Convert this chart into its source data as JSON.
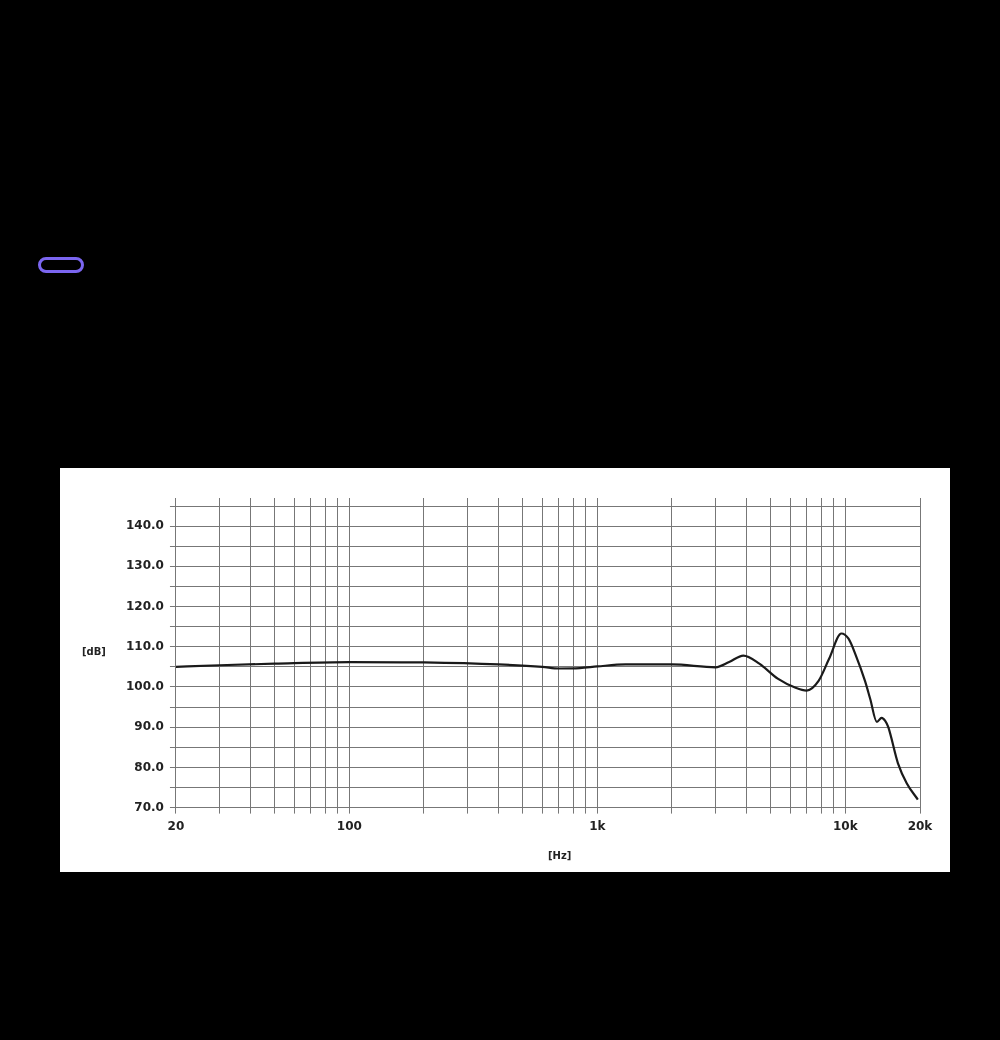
{
  "chart_data": {
    "type": "line",
    "xlabel": "[Hz]",
    "ylabel": "[dB]",
    "x": [
      20,
      30,
      50,
      100,
      200,
      400,
      600,
      700,
      850,
      1000,
      1300,
      2000,
      3000,
      3400,
      3880,
      4500,
      5360,
      6300,
      6980,
      7800,
      8600,
      9640,
      10300,
      11000,
      12000,
      12600,
      13400,
      14000,
      14500,
      14900,
      16300,
      17700,
      19600
    ],
    "series": [
      {
        "color": "#1a1a1a",
        "values": [
          105,
          105.4,
          105.8,
          106.2,
          106.1,
          105.6,
          105,
          104.6,
          104.7,
          105.1,
          105.6,
          105.6,
          104.9,
          106.2,
          107.8,
          105.8,
          102,
          99.8,
          99.1,
          101.5,
          107,
          113.3,
          112,
          108,
          101.5,
          97,
          91.3,
          92.3,
          91.5,
          90,
          81,
          76,
          72
        ]
      }
    ],
    "xlim": [
      20,
      20000
    ],
    "xticks": [
      {
        "value": 20,
        "label": "20"
      },
      {
        "value": 30,
        "label": null
      },
      {
        "value": 40,
        "label": null
      },
      {
        "value": 50,
        "label": null
      },
      {
        "value": 60,
        "label": null
      },
      {
        "value": 70,
        "label": null
      },
      {
        "value": 80,
        "label": null
      },
      {
        "value": 90,
        "label": null
      },
      {
        "value": 100,
        "label": "100"
      },
      {
        "value": 200,
        "label": null
      },
      {
        "value": 300,
        "label": null
      },
      {
        "value": 400,
        "label": null
      },
      {
        "value": 500,
        "label": null
      },
      {
        "value": 600,
        "label": null
      },
      {
        "value": 700,
        "label": null
      },
      {
        "value": 800,
        "label": null
      },
      {
        "value": 900,
        "label": null
      },
      {
        "value": 1000,
        "label": "1k"
      },
      {
        "value": 2000,
        "label": null
      },
      {
        "value": 3000,
        "label": null
      },
      {
        "value": 4000,
        "label": null
      },
      {
        "value": 5000,
        "label": null
      },
      {
        "value": 6000,
        "label": null
      },
      {
        "value": 7000,
        "label": null
      },
      {
        "value": 8000,
        "label": null
      },
      {
        "value": 9000,
        "label": null
      },
      {
        "value": 10000,
        "label": "10k"
      },
      {
        "value": 20000,
        "label": "20k"
      }
    ],
    "ylim": [
      70,
      147
    ],
    "yticks": [
      {
        "value": 70,
        "label": "70.0"
      },
      {
        "value": 75,
        "label": null
      },
      {
        "value": 80,
        "label": "80.0"
      },
      {
        "value": 85,
        "label": null
      },
      {
        "value": 90,
        "label": "90.0"
      },
      {
        "value": 95,
        "label": null
      },
      {
        "value": 100,
        "label": "100.0"
      },
      {
        "value": 105,
        "label": null
      },
      {
        "value": 110,
        "label": "110.0"
      },
      {
        "value": 115,
        "label": null
      },
      {
        "value": 120,
        "label": "120.0"
      },
      {
        "value": 125,
        "label": null
      },
      {
        "value": 130,
        "label": "130.0"
      },
      {
        "value": 135,
        "label": null
      },
      {
        "value": 140,
        "label": "140.0"
      },
      {
        "value": 145,
        "label": null
      }
    ],
    "log": "x",
    "grid": true,
    "legend": false,
    "marker": "none",
    "line_style": "solid"
  }
}
